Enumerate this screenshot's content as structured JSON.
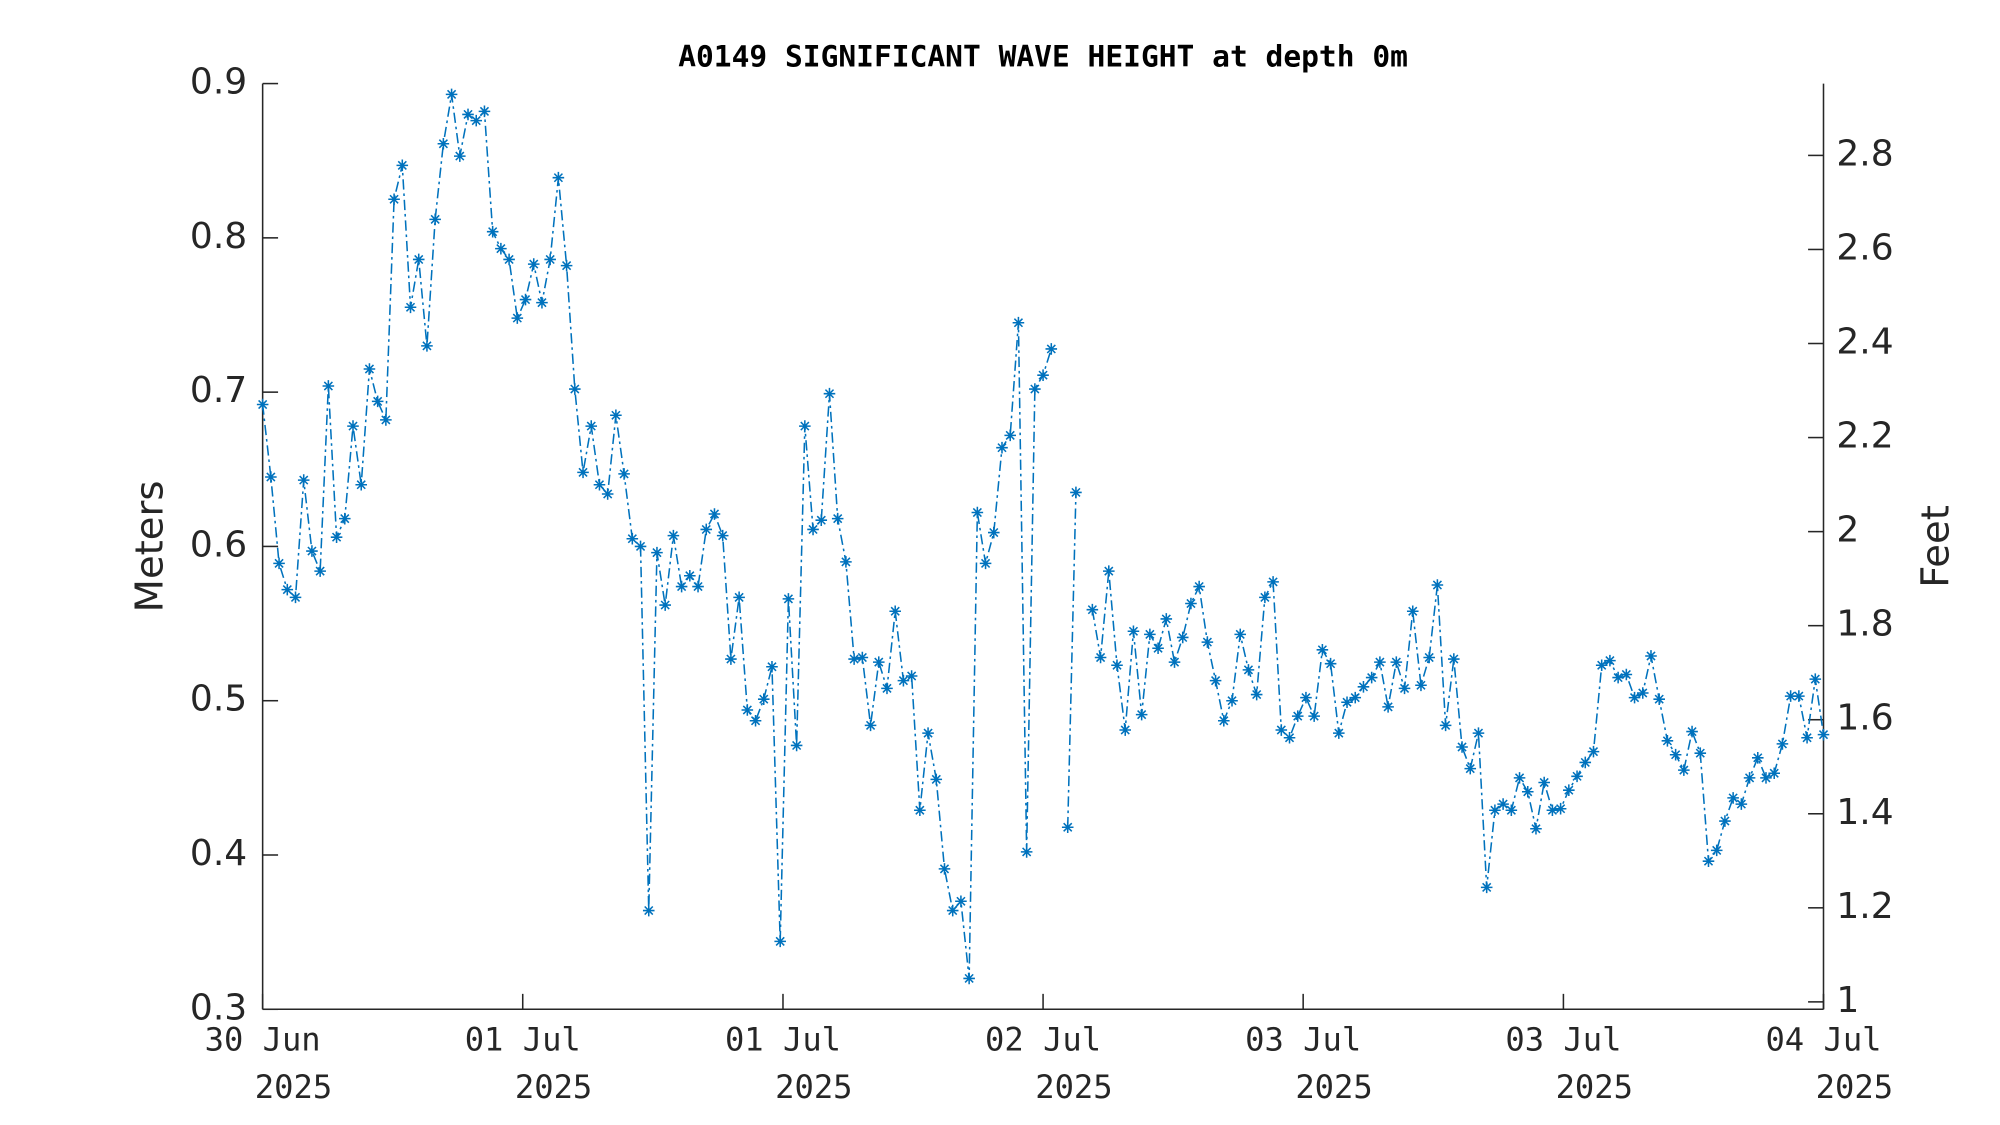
{
  "chart_data": {
    "type": "line",
    "title": "A0149 SIGNIFICANT WAVE HEIGHT at depth 0m",
    "ylabel": "Meters",
    "y2label": "Feet",
    "x": [
      0,
      0.5,
      1,
      1.5,
      2,
      2.5,
      3,
      3.5,
      4,
      4.5,
      5,
      5.5,
      6,
      6.5,
      7,
      7.5,
      8,
      8.5,
      9,
      9.5,
      10,
      10.5,
      11,
      11.5,
      12,
      12.5,
      13,
      13.5,
      14,
      14.5,
      15,
      15.5,
      16,
      16.5,
      17,
      17.5,
      18,
      18.5,
      19,
      19.5,
      20,
      20.5,
      21,
      21.5,
      22,
      22.5,
      23,
      23.5,
      24,
      24.5,
      25,
      25.5,
      26,
      26.5,
      27,
      27.5,
      28,
      28.5,
      29,
      29.5,
      30,
      30.5,
      31,
      31.5,
      32,
      32.5,
      33,
      33.5,
      34,
      34.5,
      35,
      35.5,
      36,
      36.5,
      37,
      37.5,
      38,
      38.5,
      39,
      39.5,
      40,
      40.5,
      41,
      41.5,
      42,
      42.5,
      43,
      43.5,
      44,
      44.5,
      45,
      45.5,
      46,
      46.5,
      47,
      47.5,
      48,
      48.5,
      49,
      49.5,
      50,
      50.5,
      51,
      51.5,
      52,
      52.5,
      53,
      53.5,
      54,
      54.5,
      55,
      55.5,
      56,
      56.5,
      57,
      57.5,
      58,
      58.5,
      59,
      59.5,
      60,
      60.5,
      61,
      61.5,
      62,
      62.5,
      63,
      63.5,
      64,
      64.5,
      65,
      65.5,
      66,
      66.5,
      67,
      67.5,
      68,
      68.5,
      69,
      69.5,
      70,
      70.5,
      71,
      71.5,
      72,
      72.5,
      73,
      73.5,
      74,
      74.5,
      75,
      75.5,
      76,
      76.5,
      77,
      77.5,
      78,
      78.5,
      79,
      79.5,
      80,
      80.5,
      81,
      81.5,
      82,
      82.5,
      83,
      83.5,
      84,
      84.5,
      85,
      85.5,
      86,
      86.5,
      87,
      87.5,
      88,
      88.5,
      89,
      89.5,
      90,
      90.5,
      91,
      91.5,
      92,
      92.5,
      93,
      93.5,
      94,
      94.5,
      95
    ],
    "series": [
      {
        "name": "Significant wave height",
        "color": "#0072bd",
        "values": [
          0.692,
          0.645,
          0.589,
          0.572,
          0.567,
          0.643,
          0.597,
          0.584,
          0.704,
          0.606,
          0.618,
          0.678,
          0.64,
          0.715,
          0.694,
          0.682,
          0.825,
          0.847,
          0.755,
          0.786,
          0.73,
          0.812,
          0.861,
          0.893,
          0.853,
          0.88,
          0.876,
          0.882,
          0.804,
          0.793,
          0.786,
          0.748,
          0.76,
          0.783,
          0.758,
          0.786,
          0.839,
          0.782,
          0.702,
          0.648,
          0.678,
          0.64,
          0.634,
          0.685,
          0.647,
          0.605,
          0.6,
          0.364,
          0.596,
          0.562,
          0.607,
          0.574,
          0.581,
          0.574,
          0.611,
          0.621,
          0.607,
          0.527,
          0.567,
          0.494,
          0.487,
          0.501,
          0.522,
          0.344,
          0.566,
          0.471,
          0.678,
          0.611,
          0.617,
          0.699,
          0.618,
          0.59,
          0.527,
          0.528,
          0.484,
          0.525,
          0.508,
          0.558,
          0.513,
          0.516,
          0.429,
          0.479,
          0.449,
          0.391,
          0.364,
          0.37,
          0.32,
          0.622,
          0.589,
          0.609,
          0.664,
          0.672,
          0.745,
          0.402,
          0.702,
          0.711,
          0.728,
          null,
          0.418,
          0.635,
          null,
          0.559,
          0.528,
          0.584,
          0.523,
          0.481,
          0.545,
          0.491,
          0.543,
          0.534,
          0.553,
          0.525,
          0.541,
          0.563,
          0.574,
          0.538,
          0.513,
          0.487,
          0.5,
          0.543,
          0.52,
          0.504,
          0.567,
          0.577,
          0.481,
          0.476,
          0.49,
          0.502,
          0.49,
          0.533,
          0.524,
          0.479,
          0.499,
          0.502,
          0.509,
          0.515,
          0.525,
          0.496,
          0.525,
          0.508,
          0.558,
          0.51,
          0.528,
          0.575,
          0.484,
          0.527,
          0.47,
          0.456,
          0.479,
          0.379,
          0.429,
          0.433,
          0.429,
          0.45,
          0.441,
          0.417,
          0.447,
          0.429,
          0.43,
          0.442,
          0.451,
          0.46,
          0.467,
          0.523,
          0.526,
          0.515,
          0.517,
          0.502,
          0.505,
          0.529,
          0.501,
          0.474,
          0.465,
          0.455,
          0.48,
          0.466,
          0.396,
          0.403,
          0.422,
          0.437,
          0.433,
          0.45,
          0.463,
          0.45,
          0.453,
          0.472,
          0.503,
          0.503,
          0.476,
          0.514,
          0.478
        ]
      }
    ],
    "xlim": [
      0,
      95
    ],
    "xticks": [
      {
        "value": 0,
        "label": "30 Jun",
        "sublabel": "2025"
      },
      {
        "value": 15.83,
        "label": "01 Jul",
        "sublabel": "2025"
      },
      {
        "value": 31.67,
        "label": "01 Jul",
        "sublabel": "2025"
      },
      {
        "value": 47.5,
        "label": "02 Jul",
        "sublabel": "2025"
      },
      {
        "value": 63.33,
        "label": "03 Jul",
        "sublabel": "2025"
      },
      {
        "value": 79.17,
        "label": "03 Jul",
        "sublabel": "2025"
      },
      {
        "value": 95,
        "label": "04 Jul",
        "sublabel": "2025"
      }
    ],
    "ylim": [
      0.3,
      0.9
    ],
    "yticks": [
      0.3,
      0.4,
      0.5,
      0.6,
      0.7,
      0.8,
      0.9
    ],
    "y2lim": [
      0.984252,
      2.952756
    ],
    "y2ticks": [
      1,
      1.2,
      1.4,
      1.6,
      1.8,
      2,
      2.2,
      2.4,
      2.6,
      2.8
    ],
    "grid": false
  }
}
